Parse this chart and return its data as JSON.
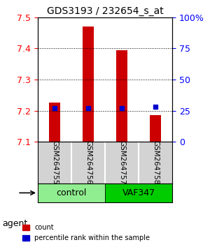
{
  "title": "GDS3193 / 232654_s_at",
  "samples": [
    "GSM264755",
    "GSM264756",
    "GSM264757",
    "GSM264758"
  ],
  "groups": [
    "control",
    "control",
    "VAF347",
    "VAF347"
  ],
  "group_labels": [
    "control",
    "VAF347"
  ],
  "group_colors": [
    "#90EE90",
    "#00CC00"
  ],
  "bar_bottom": 7.1,
  "counts": [
    7.225,
    7.47,
    7.395,
    7.185
  ],
  "percentiles": [
    27,
    27,
    27,
    28
  ],
  "ylim": [
    7.1,
    7.5
  ],
  "yticks": [
    7.1,
    7.2,
    7.3,
    7.4,
    7.5
  ],
  "y2lim": [
    0,
    100
  ],
  "y2ticks": [
    0,
    25,
    50,
    75,
    100
  ],
  "y2ticklabels": [
    "0",
    "25",
    "50",
    "75",
    "100%"
  ],
  "bar_color": "#CC0000",
  "dot_color": "#0000CC",
  "bar_width": 0.35,
  "legend_count_label": "count",
  "legend_pct_label": "percentile rank within the sample"
}
